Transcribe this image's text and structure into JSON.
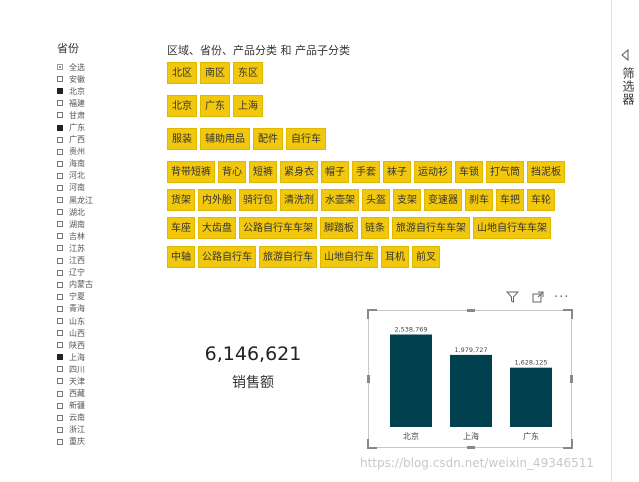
{
  "province_slicer": {
    "title": "省份",
    "items": [
      {
        "label": "全选",
        "state": "partial"
      },
      {
        "label": "安徽",
        "state": "off"
      },
      {
        "label": "北京",
        "state": "on"
      },
      {
        "label": "福建",
        "state": "off"
      },
      {
        "label": "甘肃",
        "state": "off"
      },
      {
        "label": "广东",
        "state": "on"
      },
      {
        "label": "广西",
        "state": "off"
      },
      {
        "label": "贵州",
        "state": "off"
      },
      {
        "label": "海南",
        "state": "off"
      },
      {
        "label": "河北",
        "state": "off"
      },
      {
        "label": "河南",
        "state": "off"
      },
      {
        "label": "黑龙江",
        "state": "off"
      },
      {
        "label": "湖北",
        "state": "off"
      },
      {
        "label": "湖南",
        "state": "off"
      },
      {
        "label": "吉林",
        "state": "off"
      },
      {
        "label": "江苏",
        "state": "off"
      },
      {
        "label": "江西",
        "state": "off"
      },
      {
        "label": "辽宁",
        "state": "off"
      },
      {
        "label": "内蒙古",
        "state": "off"
      },
      {
        "label": "宁夏",
        "state": "off"
      },
      {
        "label": "青海",
        "state": "off"
      },
      {
        "label": "山东",
        "state": "off"
      },
      {
        "label": "山西",
        "state": "off"
      },
      {
        "label": "陕西",
        "state": "off"
      },
      {
        "label": "上海",
        "state": "on"
      },
      {
        "label": "四川",
        "state": "off"
      },
      {
        "label": "天津",
        "state": "off"
      },
      {
        "label": "西藏",
        "state": "off"
      },
      {
        "label": "新疆",
        "state": "off"
      },
      {
        "label": "云南",
        "state": "off"
      },
      {
        "label": "浙江",
        "state": "off"
      },
      {
        "label": "重庆",
        "state": "off"
      }
    ]
  },
  "hierarchy_slicer": {
    "title": "区域、省份、产品分类 和 产品子分类",
    "rows": [
      [
        "北区",
        "南区",
        "东区"
      ],
      [
        "北京",
        "广东",
        "上海"
      ],
      [
        "服装",
        "辅助用品",
        "配件",
        "自行车"
      ],
      [
        "背带短裤",
        "背心",
        "短裤",
        "紧身衣",
        "帽子",
        "手套",
        "袜子",
        "运动衫",
        "车锁",
        "打气筒",
        "挡泥板"
      ],
      [
        "货架",
        "内外胎",
        "骑行包",
        "清洗剂",
        "水壶架",
        "头盔",
        "支架",
        "变速器",
        "刹车",
        "车把",
        "车轮"
      ],
      [
        "车座",
        "大齿盘",
        "公路自行车车架",
        "脚踏板",
        "链条",
        "旅游自行车车架",
        "山地自行车车架"
      ],
      [
        "中轴",
        "公路自行车",
        "旅游自行车",
        "山地自行车",
        "耳机",
        "前叉"
      ]
    ]
  },
  "kpi": {
    "value": "6,146,621",
    "label": "销售额"
  },
  "visual_header": {
    "filter_icon": "filter-icon",
    "focus_icon": "focus-mode-icon",
    "more_icon": "more-options-icon"
  },
  "chart_data": {
    "type": "bar",
    "categories": [
      "北京",
      "上海",
      "广东"
    ],
    "values": [
      2538769,
      1979727,
      1628125
    ],
    "data_labels": [
      "2,538,769",
      "1,979,727",
      "1,628,125"
    ],
    "ylim": [
      0,
      2800000
    ],
    "bar_color": "#01414f",
    "title": "",
    "xlabel": "",
    "ylabel": ""
  },
  "filters_pane": {
    "label": "筛选器",
    "icon": "collapse-chevron-icon"
  },
  "watermark": "https://blog.csdn.net/weixin_49346511"
}
